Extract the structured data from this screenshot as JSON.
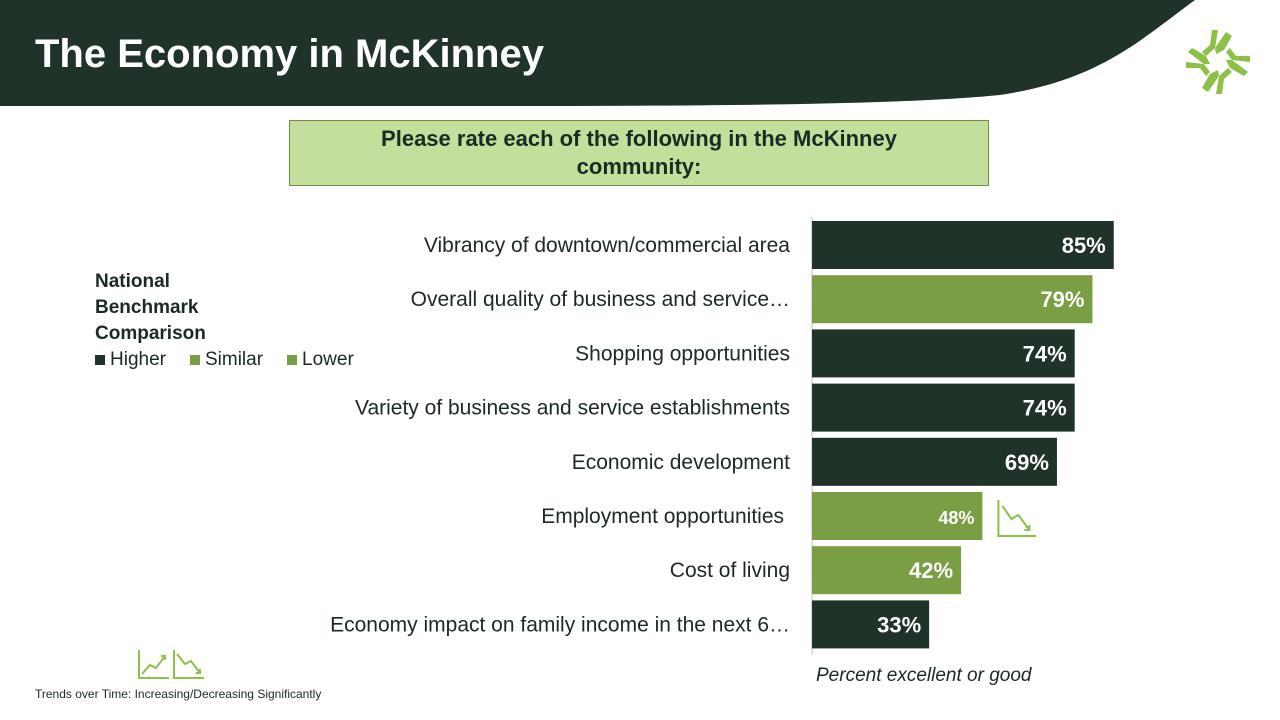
{
  "header": {
    "title": "The Economy in McKinney"
  },
  "question": "Please rate each of the following in the McKinney community:",
  "legend": {
    "title": "National Benchmark Comparison",
    "items": [
      {
        "label": "Higher",
        "color": "#1f3329"
      },
      {
        "label": "Similar",
        "color": "#7a9e44"
      },
      {
        "label": "Lower",
        "color": "#7a9e44"
      }
    ]
  },
  "axis_caption": "Percent excellent or good",
  "trend_note": "Trends over Time: Increasing/Decreasing Significantly",
  "colors": {
    "header": "#1f3329",
    "higher": "#1f3329",
    "similar": "#7a9e44",
    "logo": "#8cc046"
  },
  "chart_data": {
    "type": "bar",
    "orientation": "horizontal",
    "categories": [
      "Vibrancy of downtown/commercial area",
      "Overall quality of business and service…",
      "Shopping opportunities",
      "Variety of business and service establishments",
      "Economic development",
      "Employment opportunities",
      "Cost of living",
      "Economy impact on family income in the next 6…"
    ],
    "values": [
      85,
      79,
      74,
      74,
      69,
      48,
      42,
      33
    ],
    "value_labels": [
      "85%",
      "79%",
      "74%",
      "74%",
      "69%",
      "48%",
      "42%",
      "33%"
    ],
    "benchmark": [
      "Higher",
      "Similar",
      "Higher",
      "Higher",
      "Higher",
      "Similar",
      "Similar",
      "Higher"
    ],
    "trend": [
      "",
      "",
      "",
      "",
      "",
      "decreasing",
      "",
      ""
    ],
    "xlabel": "Percent excellent or good",
    "xlim": [
      0,
      100
    ],
    "grid": false
  }
}
